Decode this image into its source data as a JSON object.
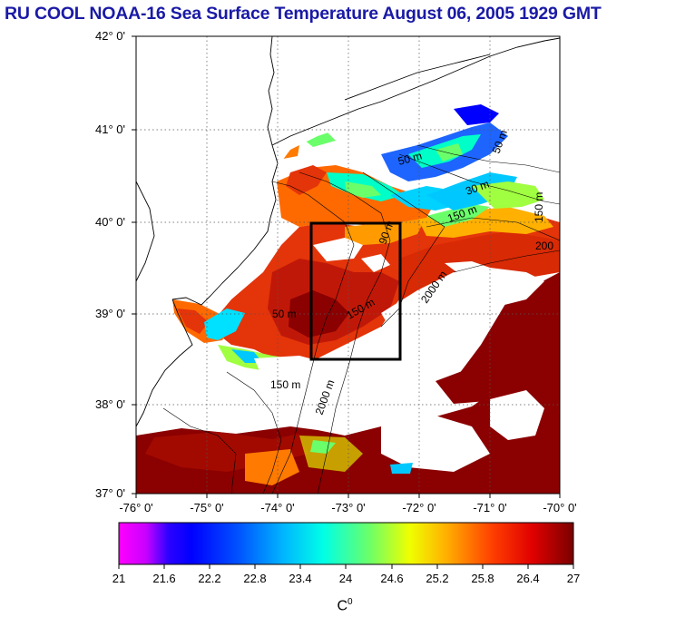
{
  "title": "RU COOL  NOAA-16 Sea Surface Temperature August 06, 2005 1929 GMT",
  "lat_labels": [
    "42° 0'",
    "41° 0'",
    "40° 0'",
    "39° 0'",
    "38° 0'",
    "37° 0'"
  ],
  "lon_labels": [
    "-76° 0'",
    "-75° 0'",
    "-74° 0'",
    "-73° 0'",
    "-72° 0'",
    "-71° 0'",
    "-70° 0'"
  ],
  "isobath_labels": [
    "50 m",
    "150 m",
    "2000 m",
    "90 m",
    "200",
    "50 m",
    "150 m",
    "30 m",
    "150 m",
    "2000 m",
    "50 m",
    "150 m"
  ],
  "colorbar": {
    "ticks": [
      "21",
      "21.6",
      "22.2",
      "22.8",
      "23.4",
      "24",
      "24.6",
      "25.2",
      "25.8",
      "26.4",
      "27"
    ],
    "unit": "C",
    "unit_sup": "0",
    "min": 21,
    "max": 27
  },
  "colors": {
    "title": "#1a1aa6",
    "warm_dark": "#8b0000",
    "warm": "#d81e05",
    "mid": "#ff7a00",
    "cool": "#00e0ff",
    "cold": "#0000ff"
  }
}
